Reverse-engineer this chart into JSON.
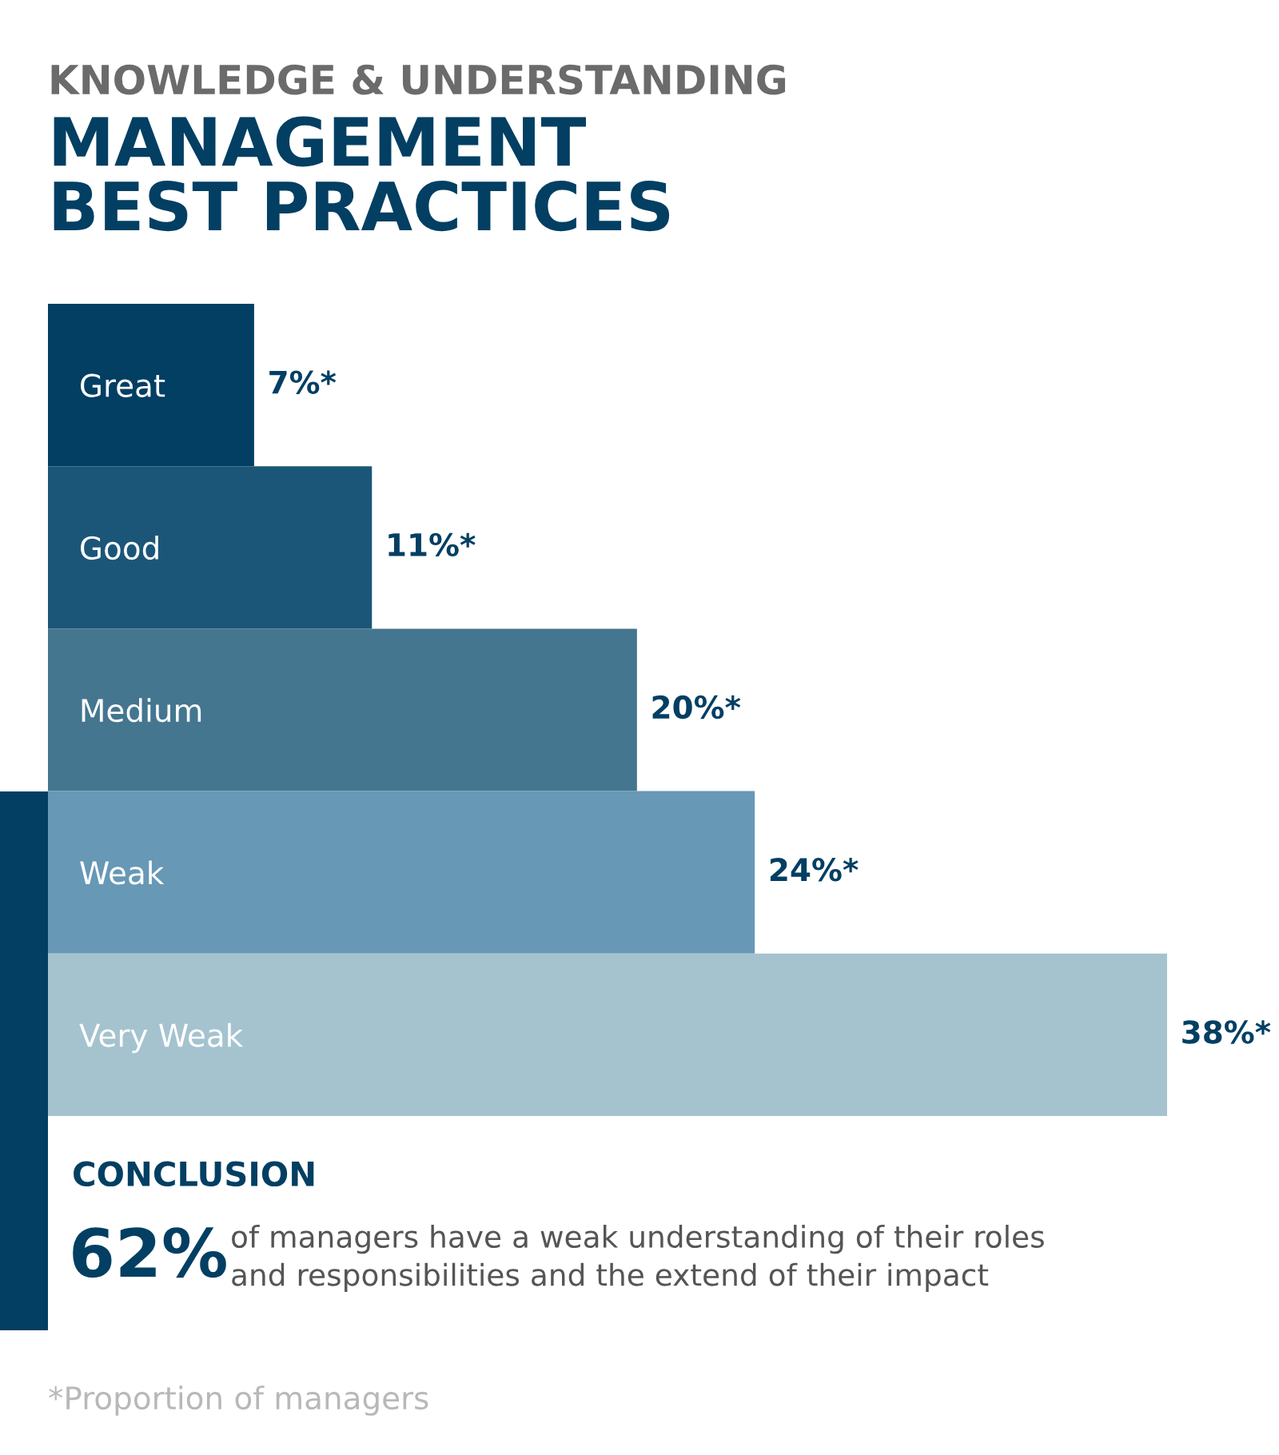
{
  "chart_data": {
    "type": "bar",
    "orientation": "horizontal",
    "subtitle": "KNOWLEDGE & UNDERSTANDING",
    "title": "MANAGEMENT\nBEST PRACTICES",
    "categories": [
      "Great",
      "Good",
      "Medium",
      "Weak",
      "Very Weak"
    ],
    "values": [
      7,
      11,
      20,
      24,
      38
    ],
    "colors": [
      "#023f63",
      "#1b5679",
      "#44768f",
      "#6798b5",
      "#a5c3cf"
    ],
    "value_labels": [
      "7%*",
      "11%*",
      "20%*",
      "24%*",
      "38%*"
    ],
    "grid": false,
    "legend": false,
    "annotations": [
      "CONCLUSION",
      "62%",
      "of managers have a weak understanding of their roles\nand responsibilities and the extend of their impact",
      "*Proportion of managers"
    ]
  }
}
